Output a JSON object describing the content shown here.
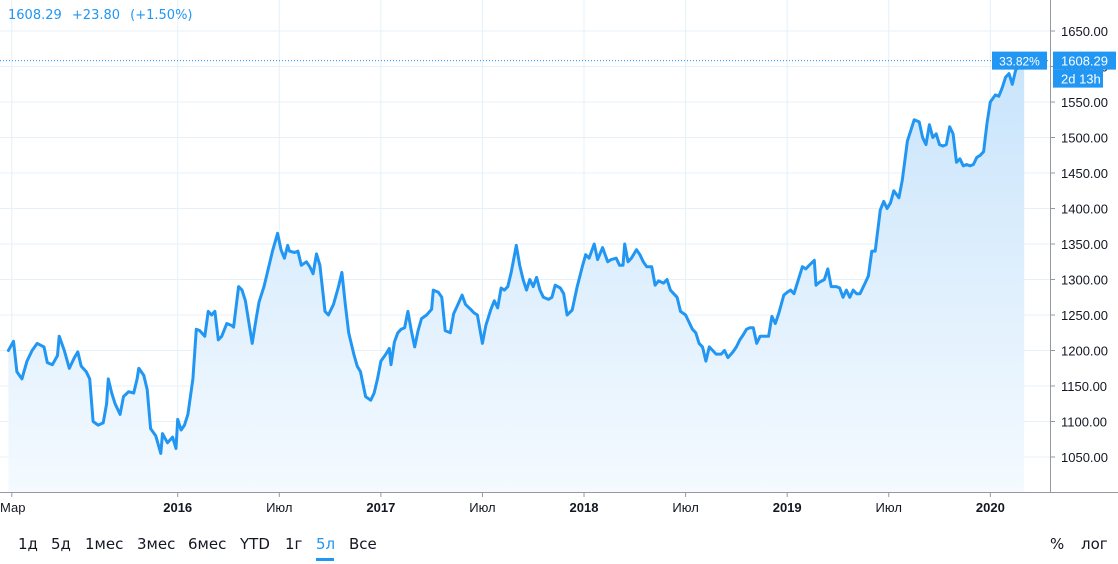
{
  "header": {
    "price": "1608.29",
    "change": "+23.80",
    "change_pct": "(+1.50%)"
  },
  "chart_data": {
    "type": "area",
    "title": "",
    "xlabel": "",
    "ylabel": "",
    "ylim": [
      1000,
      1680
    ],
    "y_ticks": [
      "1050.00",
      "1100.00",
      "1150.00",
      "1200.00",
      "1250.00",
      "1300.00",
      "1350.00",
      "1400.00",
      "1450.00",
      "1500.00",
      "1550.00",
      "1600.00",
      "1650.00"
    ],
    "x_ticks": [
      {
        "label": "Мар",
        "t": 0.2,
        "bold": false
      },
      {
        "label": "2016",
        "t": 10.0,
        "bold": true
      },
      {
        "label": "Июл",
        "t": 16.0,
        "bold": false
      },
      {
        "label": "2017",
        "t": 22.0,
        "bold": true
      },
      {
        "label": "Июл",
        "t": 28.0,
        "bold": false
      },
      {
        "label": "2018",
        "t": 34.0,
        "bold": true
      },
      {
        "label": "Июл",
        "t": 40.0,
        "bold": false
      },
      {
        "label": "2019",
        "t": 46.0,
        "bold": true
      },
      {
        "label": "Июл",
        "t": 52.0,
        "bold": false
      },
      {
        "label": "2020",
        "t": 58.0,
        "bold": true
      }
    ],
    "x_range": [
      0,
      62.0
    ],
    "series": [
      {
        "points": [
          [
            0,
            1200
          ],
          [
            0.3,
            1213
          ],
          [
            0.5,
            1170
          ],
          [
            0.8,
            1160
          ],
          [
            1.1,
            1185
          ],
          [
            1.4,
            1200
          ],
          [
            1.7,
            1210
          ],
          [
            2.1,
            1205
          ],
          [
            2.3,
            1183
          ],
          [
            2.6,
            1180
          ],
          [
            2.9,
            1193
          ],
          [
            3.0,
            1220
          ],
          [
            3.3,
            1200
          ],
          [
            3.6,
            1175
          ],
          [
            3.9,
            1190
          ],
          [
            4.1,
            1198
          ],
          [
            4.3,
            1178
          ],
          [
            4.6,
            1170
          ],
          [
            4.8,
            1160
          ],
          [
            5.0,
            1100
          ],
          [
            5.3,
            1095
          ],
          [
            5.6,
            1098
          ],
          [
            5.8,
            1125
          ],
          [
            5.9,
            1160
          ],
          [
            6.1,
            1140
          ],
          [
            6.3,
            1125
          ],
          [
            6.6,
            1110
          ],
          [
            6.8,
            1135
          ],
          [
            7.1,
            1142
          ],
          [
            7.4,
            1140
          ],
          [
            7.6,
            1160
          ],
          [
            7.7,
            1175
          ],
          [
            8.0,
            1165
          ],
          [
            8.2,
            1145
          ],
          [
            8.4,
            1090
          ],
          [
            8.7,
            1080
          ],
          [
            9.0,
            1055
          ],
          [
            9.1,
            1083
          ],
          [
            9.4,
            1070
          ],
          [
            9.7,
            1078
          ],
          [
            9.9,
            1062
          ],
          [
            10.0,
            1103
          ],
          [
            10.2,
            1088
          ],
          [
            10.4,
            1095
          ],
          [
            10.6,
            1110
          ],
          [
            10.9,
            1160
          ],
          [
            11.1,
            1230
          ],
          [
            11.3,
            1228
          ],
          [
            11.6,
            1220
          ],
          [
            11.8,
            1255
          ],
          [
            12.0,
            1250
          ],
          [
            12.2,
            1255
          ],
          [
            12.4,
            1215
          ],
          [
            12.6,
            1220
          ],
          [
            12.9,
            1238
          ],
          [
            13.2,
            1235
          ],
          [
            13.3,
            1233
          ],
          [
            13.6,
            1290
          ],
          [
            13.8,
            1285
          ],
          [
            14.0,
            1270
          ],
          [
            14.2,
            1240
          ],
          [
            14.4,
            1210
          ],
          [
            14.6,
            1240
          ],
          [
            14.8,
            1268
          ],
          [
            15.1,
            1290
          ],
          [
            15.4,
            1320
          ],
          [
            15.6,
            1340
          ],
          [
            15.9,
            1365
          ],
          [
            16.1,
            1342
          ],
          [
            16.3,
            1330
          ],
          [
            16.5,
            1348
          ],
          [
            16.6,
            1340
          ],
          [
            16.9,
            1338
          ],
          [
            17.1,
            1340
          ],
          [
            17.3,
            1320
          ],
          [
            17.6,
            1325
          ],
          [
            17.8,
            1318
          ],
          [
            18.0,
            1308
          ],
          [
            18.2,
            1336
          ],
          [
            18.4,
            1320
          ],
          [
            18.7,
            1255
          ],
          [
            18.9,
            1250
          ],
          [
            19.2,
            1265
          ],
          [
            19.5,
            1290
          ],
          [
            19.7,
            1310
          ],
          [
            19.9,
            1265
          ],
          [
            20.1,
            1225
          ],
          [
            20.4,
            1195
          ],
          [
            20.6,
            1178
          ],
          [
            20.8,
            1170
          ],
          [
            21.1,
            1135
          ],
          [
            21.4,
            1130
          ],
          [
            21.6,
            1140
          ],
          [
            21.8,
            1160
          ],
          [
            22.0,
            1185
          ],
          [
            22.3,
            1195
          ],
          [
            22.5,
            1203
          ],
          [
            22.6,
            1180
          ],
          [
            22.8,
            1212
          ],
          [
            23.0,
            1225
          ],
          [
            23.2,
            1230
          ],
          [
            23.4,
            1232
          ],
          [
            23.6,
            1255
          ],
          [
            23.8,
            1228
          ],
          [
            24.0,
            1205
          ],
          [
            24.2,
            1228
          ],
          [
            24.4,
            1245
          ],
          [
            24.7,
            1250
          ],
          [
            25.0,
            1258
          ],
          [
            25.1,
            1285
          ],
          [
            25.4,
            1282
          ],
          [
            25.6,
            1275
          ],
          [
            25.8,
            1228
          ],
          [
            26.1,
            1225
          ],
          [
            26.3,
            1252
          ],
          [
            26.5,
            1262
          ],
          [
            26.8,
            1278
          ],
          [
            27.0,
            1265
          ],
          [
            27.3,
            1258
          ],
          [
            27.5,
            1253
          ],
          [
            27.7,
            1250
          ],
          [
            28.0,
            1210
          ],
          [
            28.2,
            1235
          ],
          [
            28.5,
            1258
          ],
          [
            28.7,
            1270
          ],
          [
            28.9,
            1260
          ],
          [
            29.1,
            1288
          ],
          [
            29.3,
            1285
          ],
          [
            29.5,
            1290
          ],
          [
            29.7,
            1310
          ],
          [
            30.0,
            1348
          ],
          [
            30.2,
            1320
          ],
          [
            30.4,
            1300
          ],
          [
            30.6,
            1285
          ],
          [
            30.8,
            1300
          ],
          [
            31.0,
            1290
          ],
          [
            31.2,
            1303
          ],
          [
            31.4,
            1285
          ],
          [
            31.6,
            1275
          ],
          [
            31.9,
            1272
          ],
          [
            32.1,
            1275
          ],
          [
            32.3,
            1292
          ],
          [
            32.6,
            1288
          ],
          [
            32.8,
            1280
          ],
          [
            33.0,
            1250
          ],
          [
            33.3,
            1257
          ],
          [
            33.6,
            1290
          ],
          [
            33.9,
            1318
          ],
          [
            34.1,
            1335
          ],
          [
            34.3,
            1330
          ],
          [
            34.6,
            1350
          ],
          [
            34.8,
            1328
          ],
          [
            35.1,
            1345
          ],
          [
            35.4,
            1325
          ],
          [
            35.6,
            1328
          ],
          [
            35.9,
            1330
          ],
          [
            36.1,
            1320
          ],
          [
            36.3,
            1320
          ],
          [
            36.4,
            1350
          ],
          [
            36.6,
            1325
          ],
          [
            36.8,
            1330
          ],
          [
            37.1,
            1342
          ],
          [
            37.3,
            1335
          ],
          [
            37.5,
            1325
          ],
          [
            37.7,
            1318
          ],
          [
            38.0,
            1318
          ],
          [
            38.2,
            1292
          ],
          [
            38.4,
            1298
          ],
          [
            38.7,
            1295
          ],
          [
            38.9,
            1300
          ],
          [
            39.1,
            1285
          ],
          [
            39.3,
            1280
          ],
          [
            39.5,
            1275
          ],
          [
            39.7,
            1255
          ],
          [
            40.0,
            1250
          ],
          [
            40.2,
            1240
          ],
          [
            40.4,
            1230
          ],
          [
            40.6,
            1225
          ],
          [
            40.8,
            1210
          ],
          [
            41.0,
            1205
          ],
          [
            41.2,
            1185
          ],
          [
            41.4,
            1205
          ],
          [
            41.6,
            1200
          ],
          [
            41.8,
            1195
          ],
          [
            42.1,
            1195
          ],
          [
            42.3,
            1200
          ],
          [
            42.5,
            1190
          ],
          [
            42.8,
            1198
          ],
          [
            43.0,
            1205
          ],
          [
            43.2,
            1215
          ],
          [
            43.4,
            1222
          ],
          [
            43.6,
            1230
          ],
          [
            43.8,
            1232
          ],
          [
            44.0,
            1232
          ],
          [
            44.2,
            1210
          ],
          [
            44.4,
            1220
          ],
          [
            44.7,
            1220
          ],
          [
            44.9,
            1220
          ],
          [
            45.1,
            1248
          ],
          [
            45.3,
            1238
          ],
          [
            45.5,
            1252
          ],
          [
            45.8,
            1278
          ],
          [
            46.0,
            1282
          ],
          [
            46.2,
            1285
          ],
          [
            46.4,
            1280
          ],
          [
            46.6,
            1295
          ],
          [
            46.9,
            1318
          ],
          [
            47.1,
            1315
          ],
          [
            47.3,
            1320
          ],
          [
            47.6,
            1327
          ],
          [
            47.7,
            1292
          ],
          [
            47.9,
            1296
          ],
          [
            48.2,
            1300
          ],
          [
            48.4,
            1315
          ],
          [
            48.6,
            1290
          ],
          [
            48.9,
            1290
          ],
          [
            49.1,
            1288
          ],
          [
            49.3,
            1275
          ],
          [
            49.5,
            1285
          ],
          [
            49.7,
            1275
          ],
          [
            49.9,
            1285
          ],
          [
            50.1,
            1280
          ],
          [
            50.3,
            1280
          ],
          [
            50.6,
            1295
          ],
          [
            50.8,
            1305
          ],
          [
            51.0,
            1340
          ],
          [
            51.2,
            1340
          ],
          [
            51.5,
            1398
          ],
          [
            51.7,
            1410
          ],
          [
            51.9,
            1400
          ],
          [
            52.1,
            1408
          ],
          [
            52.3,
            1425
          ],
          [
            52.6,
            1415
          ],
          [
            52.8,
            1440
          ],
          [
            53.1,
            1495
          ],
          [
            53.3,
            1510
          ],
          [
            53.5,
            1525
          ],
          [
            53.8,
            1522
          ],
          [
            54.0,
            1500
          ],
          [
            54.2,
            1490
          ],
          [
            54.4,
            1518
          ],
          [
            54.6,
            1500
          ],
          [
            54.8,
            1505
          ],
          [
            55.0,
            1490
          ],
          [
            55.2,
            1488
          ],
          [
            55.4,
            1490
          ],
          [
            55.6,
            1515
          ],
          [
            55.8,
            1505
          ],
          [
            56.0,
            1465
          ],
          [
            56.2,
            1470
          ],
          [
            56.4,
            1460
          ],
          [
            56.6,
            1462
          ],
          [
            56.8,
            1460
          ],
          [
            57.0,
            1462
          ],
          [
            57.2,
            1472
          ],
          [
            57.4,
            1475
          ],
          [
            57.6,
            1480
          ],
          [
            57.8,
            1520
          ],
          [
            58.0,
            1550
          ],
          [
            58.3,
            1560
          ],
          [
            58.5,
            1558
          ],
          [
            58.7,
            1570
          ],
          [
            58.9,
            1585
          ],
          [
            59.1,
            1590
          ],
          [
            59.3,
            1575
          ],
          [
            59.5,
            1595
          ],
          [
            59.7,
            1600
          ],
          [
            60.0,
            1608.29
          ]
        ]
      }
    ],
    "last_value_label": "1608.29",
    "pct_label": "33.82%",
    "countdown_label": "2d 13h",
    "grid": true,
    "colors": {
      "line": "#2196f3",
      "fill_top": "#c9e4fb",
      "fill_bottom": "#f4faff",
      "grid": "#e5f0f7",
      "axis_text": "#131722",
      "label_bg": "#2196f3"
    }
  },
  "range_buttons": [
    {
      "label": "1д",
      "active": false
    },
    {
      "label": "5д",
      "active": false
    },
    {
      "label": "1мес",
      "active": false
    },
    {
      "label": "3мес",
      "active": false
    },
    {
      "label": "6мес",
      "active": false
    },
    {
      "label": "YTD",
      "active": false
    },
    {
      "label": "1г",
      "active": false
    },
    {
      "label": "5л",
      "active": true
    },
    {
      "label": "Все",
      "active": false
    }
  ],
  "right_buttons": {
    "percent": "%",
    "log": "лог"
  }
}
